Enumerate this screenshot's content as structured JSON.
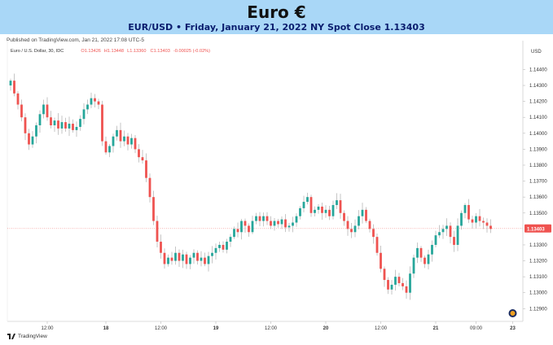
{
  "header": {
    "title": "Euro €",
    "subtitle": "EUR/USD • Friday, January 21, 2022 NY Spot Close 1.13403",
    "published": "Published on TradingView.com, Jan 21, 2022 17:08 UTC-5"
  },
  "legend": {
    "symbol": "Euro / U.S. Dollar, 30, IDC",
    "open": "O1.13426",
    "high": "H1.13448",
    "low": "L1.13360",
    "close": "C1.13403",
    "change": "-0.00025 (-0.02%)"
  },
  "footer": {
    "logo_text": "TradingView"
  },
  "colors": {
    "up": "#26a69a",
    "down": "#ef5350",
    "wick": "#b8b8b8",
    "last_price_bg": "#ef5350",
    "banner": "#a9d7f7"
  },
  "chart_data": {
    "type": "candlestick",
    "currency": "USD",
    "last_price": 1.13403,
    "last_price_label": "1.13403",
    "ylim": [
      1.1282,
      1.1454
    ],
    "y_ticks": [
      1.129,
      1.13,
      1.131,
      1.132,
      1.133,
      1.135,
      1.136,
      1.137,
      1.138,
      1.139,
      1.14,
      1.141,
      1.142,
      1.143,
      1.144
    ],
    "y_tick_labels": [
      "1.12900",
      "1.13000",
      "1.13100",
      "1.13200",
      "1.13300",
      "1.13500",
      "1.13600",
      "1.13700",
      "1.13800",
      "1.13900",
      "1.14000",
      "1.14100",
      "1.14200",
      "1.14300",
      "1.14400"
    ],
    "x_range": [
      0,
      138
    ],
    "x_ticks": [
      {
        "label": "12:00",
        "bar": 10,
        "bold": false
      },
      {
        "label": "18",
        "bar": 26,
        "bold": true
      },
      {
        "label": "12:00",
        "bar": 41,
        "bold": false
      },
      {
        "label": "19",
        "bar": 56,
        "bold": true
      },
      {
        "label": "12:00",
        "bar": 71,
        "bold": false
      },
      {
        "label": "20",
        "bar": 86,
        "bold": true
      },
      {
        "label": "12:00",
        "bar": 101,
        "bold": false
      },
      {
        "label": "21",
        "bar": 116,
        "bold": true
      },
      {
        "label": "09:00",
        "bar": 127,
        "bold": false
      },
      {
        "label": "23",
        "bar": 137,
        "bold": true
      }
    ],
    "closes": [
      1.1433,
      1.1425,
      1.1418,
      1.141,
      1.14,
      1.1393,
      1.1398,
      1.1405,
      1.1412,
      1.1418,
      1.141,
      1.1405,
      1.1408,
      1.1403,
      1.1407,
      1.1403,
      1.1406,
      1.1402,
      1.1404,
      1.1409,
      1.1415,
      1.1418,
      1.1422,
      1.142,
      1.1418,
      1.1395,
      1.1388,
      1.1392,
      1.1398,
      1.1402,
      1.1395,
      1.1398,
      1.1393,
      1.1397,
      1.139,
      1.1385,
      1.1383,
      1.1372,
      1.136,
      1.1345,
      1.1332,
      1.1325,
      1.1318,
      1.1322,
      1.132,
      1.1325,
      1.132,
      1.1324,
      1.1318,
      1.1322,
      1.1325,
      1.132,
      1.1322,
      1.1318,
      1.1323,
      1.1325,
      1.1328,
      1.133,
      1.1327,
      1.1332,
      1.1335,
      1.134,
      1.1338,
      1.1345,
      1.1342,
      1.1338,
      1.1345,
      1.1348,
      1.1345,
      1.1348,
      1.1345,
      1.1342,
      1.1345,
      1.1343,
      1.1346,
      1.1341,
      1.1342,
      1.1344,
      1.1348,
      1.1353,
      1.1357,
      1.136,
      1.135,
      1.1352,
      1.1354,
      1.135,
      1.1352,
      1.1348,
      1.1355,
      1.1358,
      1.135,
      1.1345,
      1.134,
      1.1338,
      1.1342,
      1.1348,
      1.1352,
      1.1345,
      1.134,
      1.1335,
      1.1325,
      1.1315,
      1.1308,
      1.1302,
      1.1305,
      1.131,
      1.1306,
      1.1304,
      1.13,
      1.1312,
      1.1322,
      1.1328,
      1.1322,
      1.1318,
      1.1324,
      1.133,
      1.1336,
      1.1338,
      1.134,
      1.1342,
      1.1335,
      1.133,
      1.1342,
      1.135,
      1.1355,
      1.1346,
      1.1344,
      1.1348,
      1.1345,
      1.1344,
      1.1342,
      1.134
    ],
    "first_open": 1.143
  }
}
